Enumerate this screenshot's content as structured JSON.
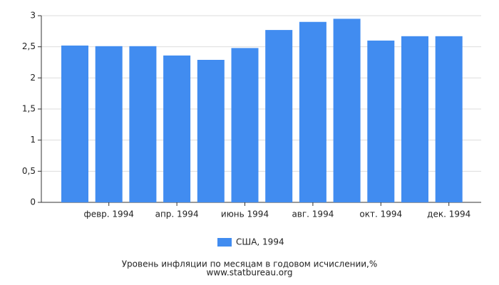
{
  "chart_data": {
    "type": "bar",
    "categories": [
      null,
      "февр. 1994",
      null,
      "апр. 1994",
      null,
      "июнь 1994",
      null,
      "авг. 1994",
      null,
      "окт. 1994",
      null,
      "дек. 1994"
    ],
    "series": [
      {
        "name": "США, 1994",
        "color": "#418cf0",
        "values": [
          2.52,
          2.51,
          2.51,
          2.36,
          2.29,
          2.48,
          2.77,
          2.9,
          2.95,
          2.6,
          2.67,
          2.67
        ]
      }
    ],
    "ylim": [
      0,
      3
    ],
    "yticks": [
      0,
      {
        "value": 0.5,
        "label": "0,5"
      },
      1,
      {
        "value": 1.5,
        "label": "1,5"
      },
      2,
      {
        "value": 2.5,
        "label": "2,5"
      },
      3
    ],
    "grid": true,
    "caption": "Уровень инфляции по месяцам в годовом исчислении,%",
    "source": "www.statbureau.org"
  }
}
